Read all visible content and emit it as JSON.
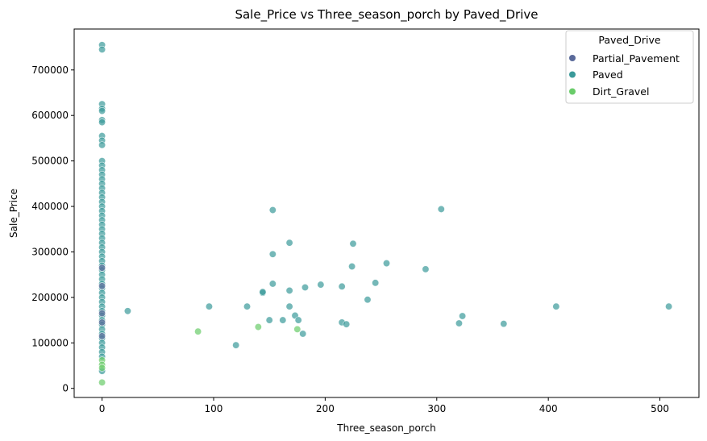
{
  "chart_data": {
    "type": "scatter",
    "title": "Sale_Price vs Three_season_porch by Paved_Drive",
    "xlabel": "Three_season_porch",
    "ylabel": "Sale_Price",
    "xlim": [
      -25,
      535
    ],
    "ylim": [
      -20000,
      790000
    ],
    "x_ticks": [
      0,
      100,
      200,
      300,
      400,
      500
    ],
    "y_ticks": [
      0,
      100000,
      200000,
      300000,
      400000,
      500000,
      600000,
      700000
    ],
    "grid": false,
    "legend": {
      "title": "Paved_Drive",
      "placement": "top-right",
      "entries": [
        "Partial_Pavement",
        "Paved",
        "Dirt_Gravel"
      ]
    },
    "colors": {
      "Partial_Pavement": "#5a6a9a",
      "Paved": "#3a9a9a",
      "Dirt_Gravel": "#6acc6a"
    },
    "series": [
      {
        "name": "Paved",
        "points": [
          [
            0,
            755000
          ],
          [
            0,
            745000
          ],
          [
            0,
            625000
          ],
          [
            0,
            615000
          ],
          [
            0,
            610000
          ],
          [
            0,
            590000
          ],
          [
            0,
            585000
          ],
          [
            0,
            555000
          ],
          [
            0,
            545000
          ],
          [
            0,
            535000
          ],
          [
            0,
            500000
          ],
          [
            0,
            490000
          ],
          [
            0,
            480000
          ],
          [
            0,
            470000
          ],
          [
            0,
            460000
          ],
          [
            0,
            450000
          ],
          [
            0,
            440000
          ],
          [
            0,
            430000
          ],
          [
            0,
            420000
          ],
          [
            0,
            410000
          ],
          [
            0,
            400000
          ],
          [
            0,
            390000
          ],
          [
            0,
            380000
          ],
          [
            0,
            370000
          ],
          [
            0,
            360000
          ],
          [
            0,
            350000
          ],
          [
            0,
            340000
          ],
          [
            0,
            330000
          ],
          [
            0,
            320000
          ],
          [
            0,
            310000
          ],
          [
            0,
            300000
          ],
          [
            0,
            290000
          ],
          [
            0,
            280000
          ],
          [
            0,
            270000
          ],
          [
            0,
            260000
          ],
          [
            0,
            250000
          ],
          [
            0,
            240000
          ],
          [
            0,
            230000
          ],
          [
            0,
            220000
          ],
          [
            0,
            210000
          ],
          [
            0,
            200000
          ],
          [
            0,
            190000
          ],
          [
            0,
            180000
          ],
          [
            0,
            170000
          ],
          [
            0,
            160000
          ],
          [
            0,
            150000
          ],
          [
            0,
            140000
          ],
          [
            0,
            130000
          ],
          [
            0,
            120000
          ],
          [
            0,
            110000
          ],
          [
            0,
            100000
          ],
          [
            0,
            90000
          ],
          [
            0,
            80000
          ],
          [
            0,
            70000
          ],
          [
            0,
            38000
          ],
          [
            23,
            170000
          ],
          [
            96,
            180000
          ],
          [
            120,
            95000
          ],
          [
            130,
            180000
          ],
          [
            144,
            210000
          ],
          [
            144,
            212000
          ],
          [
            150,
            150000
          ],
          [
            153,
            230000
          ],
          [
            153,
            295000
          ],
          [
            153,
            392000
          ],
          [
            162,
            150000
          ],
          [
            168,
            320000
          ],
          [
            168,
            215000
          ],
          [
            168,
            180000
          ],
          [
            173,
            160000
          ],
          [
            176,
            150000
          ],
          [
            180,
            120000
          ],
          [
            182,
            222000
          ],
          [
            196,
            228000
          ],
          [
            215,
            145000
          ],
          [
            215,
            224000
          ],
          [
            219,
            141000
          ],
          [
            224,
            268000
          ],
          [
            225,
            318000
          ],
          [
            238,
            195000
          ],
          [
            245,
            232000
          ],
          [
            255,
            275000
          ],
          [
            290,
            262000
          ],
          [
            304,
            394000
          ],
          [
            320,
            143000
          ],
          [
            323,
            159000
          ],
          [
            360,
            142000
          ],
          [
            407,
            180000
          ],
          [
            508,
            180000
          ]
        ]
      },
      {
        "name": "Partial_Pavement",
        "points": [
          [
            0,
            265000
          ],
          [
            0,
            225000
          ],
          [
            0,
            165000
          ],
          [
            0,
            145000
          ],
          [
            0,
            115000
          ]
        ]
      },
      {
        "name": "Dirt_Gravel",
        "points": [
          [
            0,
            62000
          ],
          [
            0,
            52000
          ],
          [
            0,
            45000
          ],
          [
            0,
            13000
          ],
          [
            86,
            125000
          ],
          [
            140,
            135000
          ],
          [
            175,
            130000
          ]
        ]
      }
    ]
  }
}
